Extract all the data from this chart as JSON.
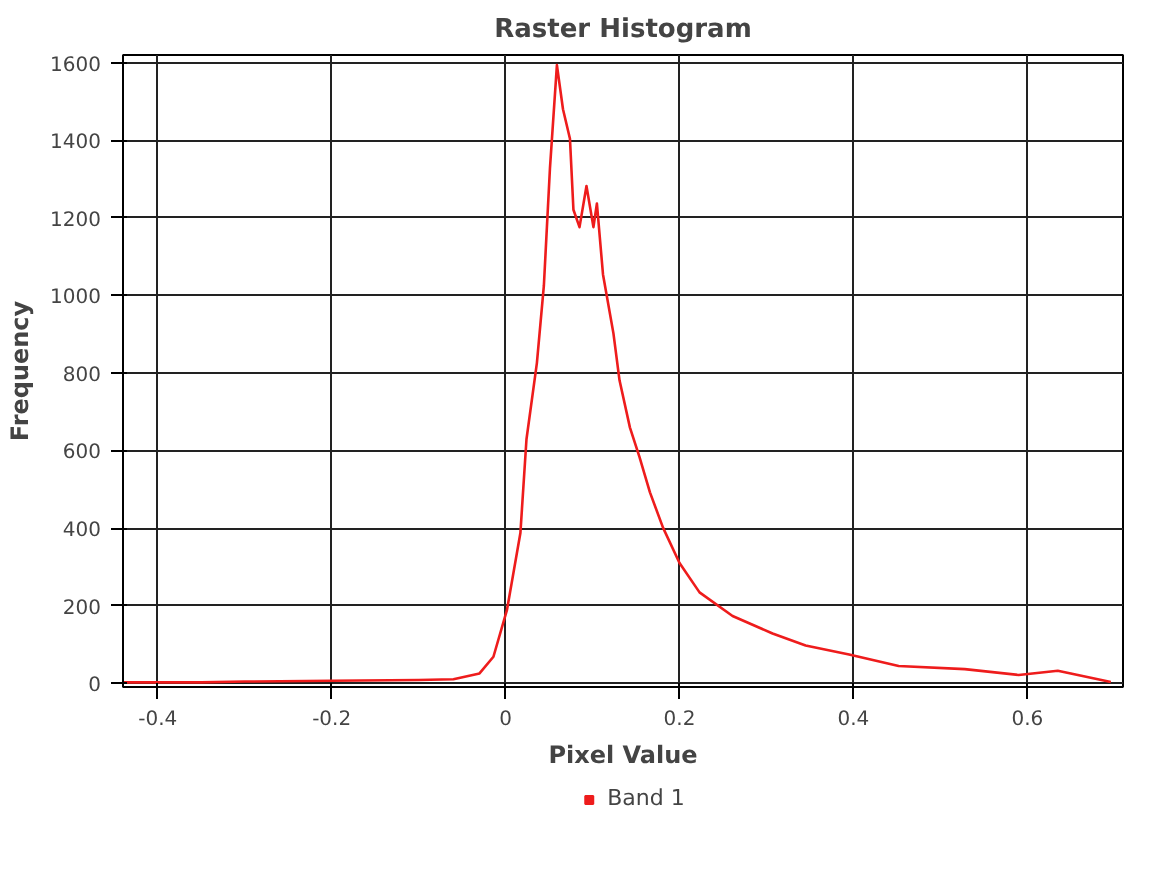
{
  "chart_data": {
    "type": "line",
    "title": "Raster Histogram",
    "xlabel": "Pixel Value",
    "ylabel": "Frequency",
    "xlim": [
      -0.44,
      0.71
    ],
    "ylim": [
      -10,
      1620
    ],
    "xticks": [
      -0.4,
      -0.2,
      0,
      0.2,
      0.4,
      0.6
    ],
    "yticks": [
      0,
      200,
      400,
      600,
      800,
      1000,
      1200,
      1400,
      1600
    ],
    "grid": true,
    "legend": "bottom",
    "marker": "none",
    "line_style": "solid",
    "series": [
      {
        "name": "Band 1",
        "color": "#ee1c1c",
        "x": [
          -0.44,
          -0.35,
          -0.3,
          -0.2,
          -0.1,
          -0.06,
          -0.03,
          -0.014,
          0.0015,
          0.017,
          0.024,
          0.036,
          0.044,
          0.051,
          0.059,
          0.066,
          0.074,
          0.078,
          0.085,
          0.093,
          0.101,
          0.105,
          0.112,
          0.124,
          0.131,
          0.143,
          0.154,
          0.166,
          0.181,
          0.2,
          0.223,
          0.261,
          0.307,
          0.345,
          0.395,
          0.452,
          0.528,
          0.59,
          0.635,
          0.696
        ],
        "values": [
          2,
          2,
          4,
          6,
          8,
          10,
          25,
          68,
          188,
          387,
          629,
          826,
          1025,
          1328,
          1594,
          1480,
          1404,
          1221,
          1176,
          1282,
          1176,
          1237,
          1054,
          902,
          781,
          659,
          583,
          492,
          401,
          310,
          234,
          173,
          128,
          97,
          74,
          44,
          36,
          21,
          32,
          3
        ]
      }
    ]
  }
}
